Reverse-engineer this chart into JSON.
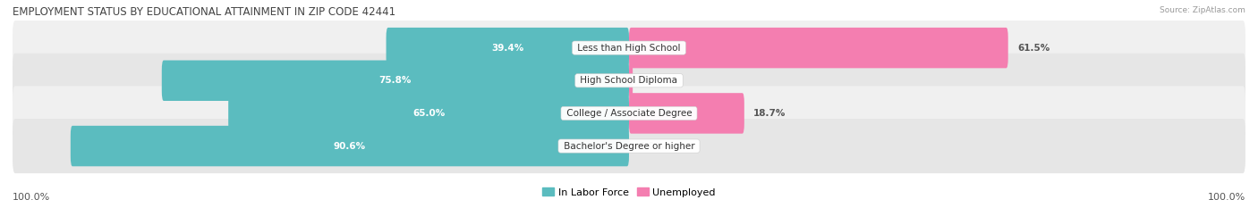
{
  "title": "EMPLOYMENT STATUS BY EDUCATIONAL ATTAINMENT IN ZIP CODE 42441",
  "source": "Source: ZipAtlas.com",
  "categories": [
    "Less than High School",
    "High School Diploma",
    "College / Associate Degree",
    "Bachelor's Degree or higher"
  ],
  "labor_force": [
    39.4,
    75.8,
    65.0,
    90.6
  ],
  "unemployed": [
    61.5,
    0.6,
    18.7,
    0.0
  ],
  "labor_force_color": "#5BBCBF",
  "unemployed_color": "#F47EB0",
  "row_bg_color_odd": "#F0F0F0",
  "row_bg_color_even": "#E6E6E6",
  "label_white_color": "#FFFFFF",
  "label_dark_color": "#555555",
  "title_color": "#444444",
  "legend_labor": "In Labor Force",
  "legend_unemployed": "Unemployed",
  "x_left_label": "100.0%",
  "x_right_label": "100.0%",
  "title_fontsize": 8.5,
  "bar_label_fontsize": 7.5,
  "category_fontsize": 7.5,
  "legend_fontsize": 8,
  "axis_label_fontsize": 8
}
